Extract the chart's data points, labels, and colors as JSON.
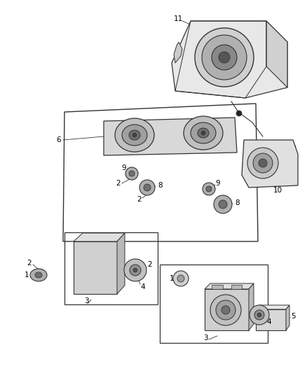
{
  "bg_color": "#ffffff",
  "line_color": "#333333",
  "figsize": [
    4.38,
    5.33
  ],
  "dpi": 100,
  "gray_light": "#cccccc",
  "gray_mid": "#999999",
  "gray_dark": "#666666",
  "gray_darker": "#444444",
  "gray_darkest": "#222222"
}
